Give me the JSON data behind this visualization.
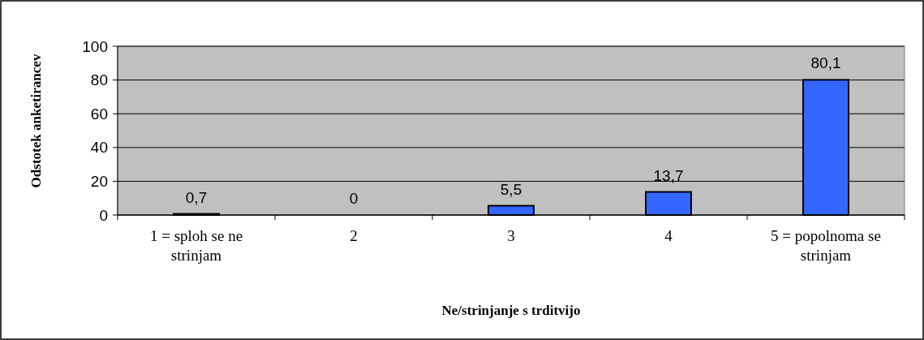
{
  "chart_data": {
    "type": "bar",
    "xlabel": "Ne/strinjanje s trditvijo",
    "ylabel": "Odstotek anketirancev",
    "categories": [
      "1 = sploh se ne strinjam",
      "2",
      "3",
      "4",
      "5 = popolnoma se strinjam"
    ],
    "values": [
      0.7,
      0,
      5.5,
      13.7,
      80.1
    ],
    "value_labels": [
      "0,7",
      "0",
      "5,5",
      "13,7",
      "80,1"
    ],
    "color": "#3366ff",
    "ylim": [
      0,
      100
    ],
    "yticks": [
      0,
      20,
      40,
      60,
      80,
      100
    ],
    "grid": "y"
  }
}
